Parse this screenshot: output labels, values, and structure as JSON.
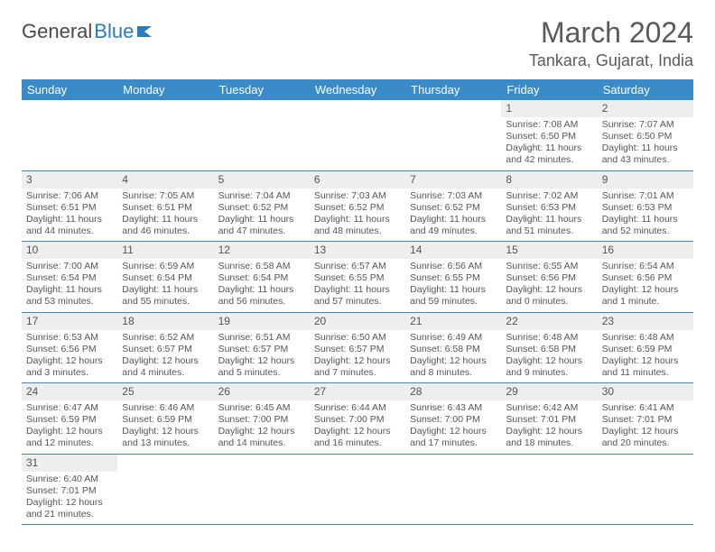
{
  "brand": {
    "part1": "General",
    "part2": "Blue"
  },
  "title": "March 2024",
  "location": "Tankara, Gujarat, India",
  "colors": {
    "header_bg": "#3b8bc9",
    "header_fg": "#ffffff",
    "daynum_bg": "#eeeeee",
    "text": "#555555",
    "rule": "#3b8bc9"
  },
  "weekdays": [
    "Sunday",
    "Monday",
    "Tuesday",
    "Wednesday",
    "Thursday",
    "Friday",
    "Saturday"
  ],
  "first_weekday_index": 5,
  "days": [
    {
      "n": 1,
      "sr": "7:08 AM",
      "ss": "6:50 PM",
      "dl": "11 hours and 42 minutes."
    },
    {
      "n": 2,
      "sr": "7:07 AM",
      "ss": "6:50 PM",
      "dl": "11 hours and 43 minutes."
    },
    {
      "n": 3,
      "sr": "7:06 AM",
      "ss": "6:51 PM",
      "dl": "11 hours and 44 minutes."
    },
    {
      "n": 4,
      "sr": "7:05 AM",
      "ss": "6:51 PM",
      "dl": "11 hours and 46 minutes."
    },
    {
      "n": 5,
      "sr": "7:04 AM",
      "ss": "6:52 PM",
      "dl": "11 hours and 47 minutes."
    },
    {
      "n": 6,
      "sr": "7:03 AM",
      "ss": "6:52 PM",
      "dl": "11 hours and 48 minutes."
    },
    {
      "n": 7,
      "sr": "7:03 AM",
      "ss": "6:52 PM",
      "dl": "11 hours and 49 minutes."
    },
    {
      "n": 8,
      "sr": "7:02 AM",
      "ss": "6:53 PM",
      "dl": "11 hours and 51 minutes."
    },
    {
      "n": 9,
      "sr": "7:01 AM",
      "ss": "6:53 PM",
      "dl": "11 hours and 52 minutes."
    },
    {
      "n": 10,
      "sr": "7:00 AM",
      "ss": "6:54 PM",
      "dl": "11 hours and 53 minutes."
    },
    {
      "n": 11,
      "sr": "6:59 AM",
      "ss": "6:54 PM",
      "dl": "11 hours and 55 minutes."
    },
    {
      "n": 12,
      "sr": "6:58 AM",
      "ss": "6:54 PM",
      "dl": "11 hours and 56 minutes."
    },
    {
      "n": 13,
      "sr": "6:57 AM",
      "ss": "6:55 PM",
      "dl": "11 hours and 57 minutes."
    },
    {
      "n": 14,
      "sr": "6:56 AM",
      "ss": "6:55 PM",
      "dl": "11 hours and 59 minutes."
    },
    {
      "n": 15,
      "sr": "6:55 AM",
      "ss": "6:56 PM",
      "dl": "12 hours and 0 minutes."
    },
    {
      "n": 16,
      "sr": "6:54 AM",
      "ss": "6:56 PM",
      "dl": "12 hours and 1 minute."
    },
    {
      "n": 17,
      "sr": "6:53 AM",
      "ss": "6:56 PM",
      "dl": "12 hours and 3 minutes."
    },
    {
      "n": 18,
      "sr": "6:52 AM",
      "ss": "6:57 PM",
      "dl": "12 hours and 4 minutes."
    },
    {
      "n": 19,
      "sr": "6:51 AM",
      "ss": "6:57 PM",
      "dl": "12 hours and 5 minutes."
    },
    {
      "n": 20,
      "sr": "6:50 AM",
      "ss": "6:57 PM",
      "dl": "12 hours and 7 minutes."
    },
    {
      "n": 21,
      "sr": "6:49 AM",
      "ss": "6:58 PM",
      "dl": "12 hours and 8 minutes."
    },
    {
      "n": 22,
      "sr": "6:48 AM",
      "ss": "6:58 PM",
      "dl": "12 hours and 9 minutes."
    },
    {
      "n": 23,
      "sr": "6:48 AM",
      "ss": "6:59 PM",
      "dl": "12 hours and 11 minutes."
    },
    {
      "n": 24,
      "sr": "6:47 AM",
      "ss": "6:59 PM",
      "dl": "12 hours and 12 minutes."
    },
    {
      "n": 25,
      "sr": "6:46 AM",
      "ss": "6:59 PM",
      "dl": "12 hours and 13 minutes."
    },
    {
      "n": 26,
      "sr": "6:45 AM",
      "ss": "7:00 PM",
      "dl": "12 hours and 14 minutes."
    },
    {
      "n": 27,
      "sr": "6:44 AM",
      "ss": "7:00 PM",
      "dl": "12 hours and 16 minutes."
    },
    {
      "n": 28,
      "sr": "6:43 AM",
      "ss": "7:00 PM",
      "dl": "12 hours and 17 minutes."
    },
    {
      "n": 29,
      "sr": "6:42 AM",
      "ss": "7:01 PM",
      "dl": "12 hours and 18 minutes."
    },
    {
      "n": 30,
      "sr": "6:41 AM",
      "ss": "7:01 PM",
      "dl": "12 hours and 20 minutes."
    },
    {
      "n": 31,
      "sr": "6:40 AM",
      "ss": "7:01 PM",
      "dl": "12 hours and 21 minutes."
    }
  ],
  "labels": {
    "sunrise": "Sunrise:",
    "sunset": "Sunset:",
    "daylight": "Daylight:"
  }
}
